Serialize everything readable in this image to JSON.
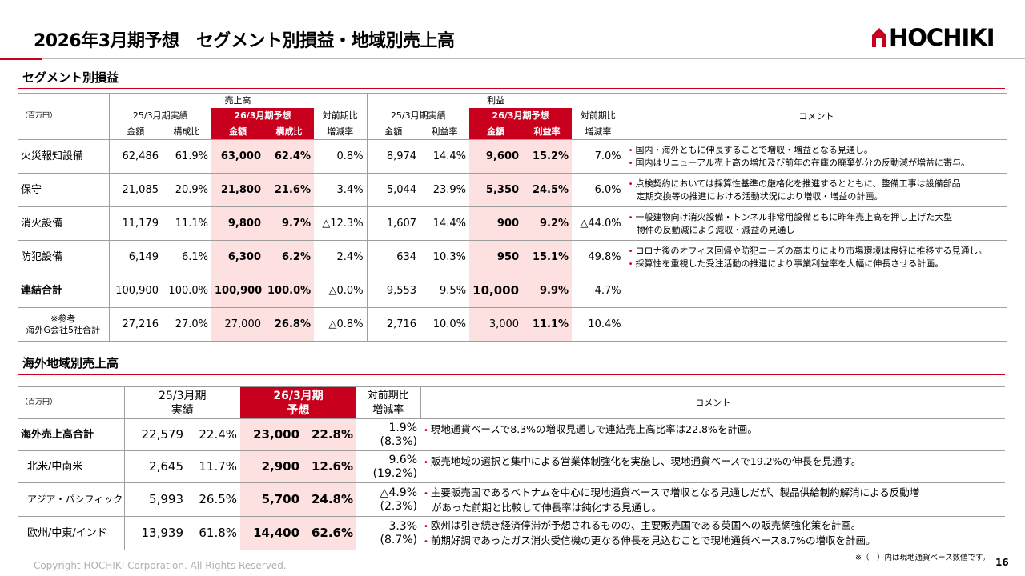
{
  "slide": {
    "title": "2026年3月期予想　セグメント別損益・地域別売上高",
    "logo_text": "HOCHIKI",
    "page_number": "16",
    "footer": "Copyright HOCHIKI Corporation. All Rights Reserved.",
    "note": "※（　）内は現地通貨ベース数値です。",
    "accent_color": "#c8001e",
    "highlight_color": "#fde1e1"
  },
  "segment": {
    "section_title": "セグメント別損益",
    "unit": "（百万円）",
    "group_sales": "売上高",
    "group_profit": "利益",
    "h_prev": "25/3月期実績",
    "h_fcst": "26/3月期予想",
    "h_yoy": "対前期比",
    "h_amount": "金額",
    "h_ratio": "構成比",
    "h_margin": "利益率",
    "h_change": "増減率",
    "h_comment": "コメント",
    "rows": [
      {
        "name": "火災報知設備",
        "s_prev": "62,486",
        "s_prev_r": "61.9%",
        "s_fcst": "63,000",
        "s_fcst_r": "62.4%",
        "s_yoy": "0.8%",
        "p_prev": "8,974",
        "p_prev_r": "14.4%",
        "p_fcst": "9,600",
        "p_fcst_r": "15.2%",
        "p_yoy": "7.0%",
        "comments": [
          "国内・海外ともに伸長することで増収・増益となる見通し。",
          "国内はリニューアル売上高の増加及び前年の在庫の廃棄処分の反動減が増益に寄与。"
        ]
      },
      {
        "name": "保守",
        "s_prev": "21,085",
        "s_prev_r": "20.9%",
        "s_fcst": "21,800",
        "s_fcst_r": "21.6%",
        "s_yoy": "3.4%",
        "p_prev": "5,044",
        "p_prev_r": "23.9%",
        "p_fcst": "5,350",
        "p_fcst_r": "24.5%",
        "p_yoy": "6.0%",
        "comments": [
          "点検契約においては採算性基準の厳格化を推進するとともに、整備工事は設備部品",
          "定期交換等の推進における活動状況により増収・増益の計画。"
        ]
      },
      {
        "name": "消火設備",
        "s_prev": "11,179",
        "s_prev_r": "11.1%",
        "s_fcst": "9,800",
        "s_fcst_r": "9.7%",
        "s_yoy": "△12.3%",
        "p_prev": "1,607",
        "p_prev_r": "14.4%",
        "p_fcst": "900",
        "p_fcst_r": "9.2%",
        "p_yoy": "△44.0%",
        "comments": [
          "一般建物向け消火設備・トンネル非常用設備ともに昨年売上高を押し上げた大型",
          "物件の反動減により減収・減益の見通し"
        ]
      },
      {
        "name": "防犯設備",
        "s_prev": "6,149",
        "s_prev_r": "6.1%",
        "s_fcst": "6,300",
        "s_fcst_r": "6.2%",
        "s_yoy": "2.4%",
        "p_prev": "634",
        "p_prev_r": "10.3%",
        "p_fcst": "950",
        "p_fcst_r": "15.1%",
        "p_yoy": "49.8%",
        "comments": [
          "コロナ後のオフィス回帰や防犯ニーズの高まりにより市場環境は良好に推移する見通し。",
          "採算性を重視した受注活動の推進により事業利益率を大幅に伸長させる計画。"
        ]
      },
      {
        "name": "連結合計",
        "s_prev": "100,900",
        "s_prev_r": "100.0%",
        "s_fcst": "100,900",
        "s_fcst_r": "100.0%",
        "s_yoy": "△0.0%",
        "p_prev": "9,553",
        "p_prev_r": "9.5%",
        "p_fcst": "10,000",
        "p_fcst_r": "9.9%",
        "p_yoy": "4.7%",
        "comments": []
      },
      {
        "name": "※参考",
        "name2": "海外G会社5社合計",
        "s_prev": "27,216",
        "s_prev_r": "27.0%",
        "s_fcst": "27,000",
        "s_fcst_r": "26.8%",
        "s_yoy": "△0.8%",
        "p_prev": "2,716",
        "p_prev_r": "10.0%",
        "p_fcst": "3,000",
        "p_fcst_r": "11.1%",
        "p_yoy": "10.4%",
        "comments": []
      }
    ]
  },
  "overseas": {
    "section_title": "海外地域別売上高",
    "unit": "（百万円）",
    "h_prev_1": "25/3月期",
    "h_prev_2": "実績",
    "h_fcst_1": "26/3月期",
    "h_fcst_2": "予想",
    "h_yoy_1": "対前期比",
    "h_yoy_2": "増減率",
    "h_comment": "コメント",
    "rows": [
      {
        "name": "海外売上高合計",
        "prev": "22,579",
        "prev_r": "22.4%",
        "fcst": "23,000",
        "fcst_r": "22.8%",
        "yoy": "1.9%",
        "yoy_local": "(8.3%)",
        "comments": [
          "現地通貨ベースで8.3%の増収見通しで連結売上高比率は22.8%を計画。"
        ]
      },
      {
        "name": "北米/中南米",
        "prev": "2,645",
        "prev_r": "11.7%",
        "fcst": "2,900",
        "fcst_r": "12.6%",
        "yoy": "9.6%",
        "yoy_local": "(19.2%)",
        "comments": [
          "販売地域の選択と集中による営業体制強化を実施し、現地通貨ベースで19.2%の伸長を見通す。"
        ]
      },
      {
        "name": "アジア・パシフィック",
        "prev": "5,993",
        "prev_r": "26.5%",
        "fcst": "5,700",
        "fcst_r": "24.8%",
        "yoy": "△4.9%",
        "yoy_local": "(2.3%)",
        "comments": [
          "主要販売国であるベトナムを中心に現地通貨ベースで増収となる見通しだが、製品供給制約解消による反動増",
          "があった前期と比較して伸長率は鈍化する見通し。"
        ]
      },
      {
        "name": "欧州/中東/インド",
        "prev": "13,939",
        "prev_r": "61.8%",
        "fcst": "14,400",
        "fcst_r": "62.6%",
        "yoy": "3.3%",
        "yoy_local": "(8.7%)",
        "comments": [
          "欧州は引き続き経済停滞が予想されるものの、主要販売国である英国への販売網強化策を計画。",
          "前期好調であったガス消火受信機の更なる伸長を見込むことで現地通貨ベース8.7%の増収を計画。"
        ]
      }
    ]
  }
}
